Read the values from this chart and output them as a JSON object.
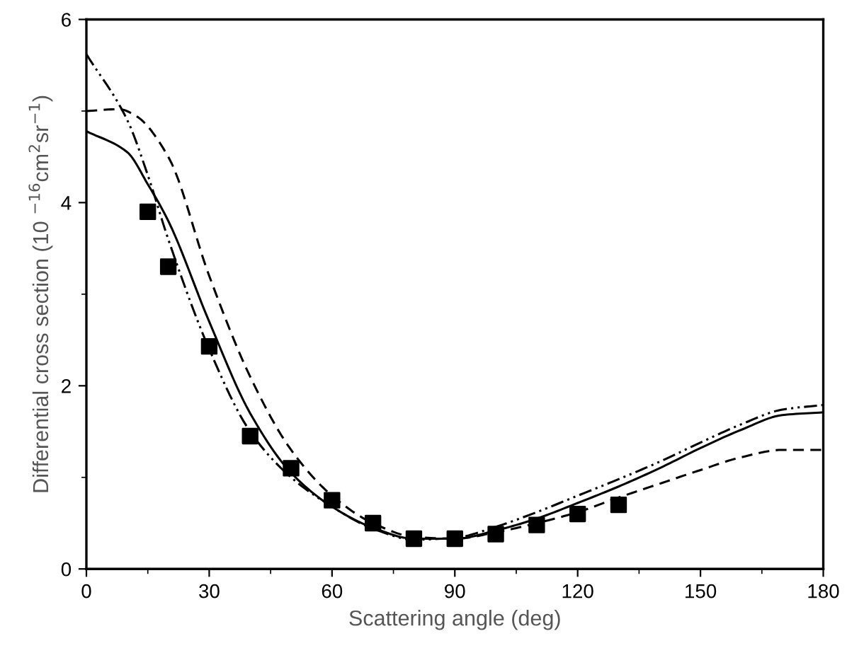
{
  "chart_data": {
    "type": "line",
    "xlabel": "Scattering angle (deg)",
    "ylabel": "Differential cross section (10 $^{−16}$cm$^{2}$sr$^{−1}$)",
    "xlim": [
      0,
      180
    ],
    "ylim": [
      0,
      6
    ],
    "xticks": [
      0,
      30,
      60,
      90,
      120,
      150,
      180
    ],
    "yticks": [
      0,
      2,
      4,
      6
    ],
    "grid": false,
    "legend": false,
    "series": [
      {
        "color": "#000000",
        "line_style": "solid",
        "marker": "none",
        "x": [
          0,
          10,
          15,
          20,
          30,
          40,
          50,
          60,
          70,
          80,
          90,
          100,
          110,
          120,
          130,
          140,
          150,
          160,
          170,
          180
        ],
        "values": [
          4.78,
          4.55,
          4.2,
          3.8,
          2.7,
          1.7,
          1.05,
          0.68,
          0.45,
          0.33,
          0.33,
          0.42,
          0.55,
          0.72,
          0.9,
          1.1,
          1.32,
          1.52,
          1.68,
          1.71
        ]
      },
      {
        "color": "#000000",
        "line_style": "dashed",
        "marker": "none",
        "x": [
          0,
          8,
          12,
          20,
          30,
          40,
          50,
          60,
          70,
          80,
          90,
          100,
          110,
          120,
          130,
          140,
          150,
          160,
          170,
          180
        ],
        "values": [
          5.0,
          5.02,
          4.95,
          4.5,
          3.2,
          2.1,
          1.3,
          0.8,
          0.5,
          0.35,
          0.33,
          0.4,
          0.5,
          0.62,
          0.78,
          0.93,
          1.08,
          1.22,
          1.3,
          1.3
        ]
      },
      {
        "color": "#000000",
        "line_style": "dashdot",
        "marker": "none",
        "x": [
          0,
          10,
          15,
          20,
          30,
          40,
          50,
          60,
          70,
          80,
          90,
          100,
          110,
          120,
          130,
          140,
          150,
          160,
          170,
          180
        ],
        "values": [
          5.62,
          4.9,
          4.3,
          3.6,
          2.4,
          1.5,
          1.0,
          0.68,
          0.44,
          0.32,
          0.34,
          0.46,
          0.62,
          0.8,
          0.98,
          1.17,
          1.38,
          1.58,
          1.74,
          1.79
        ]
      },
      {
        "type": "scatter",
        "color": "#000000",
        "marker": "square",
        "x": [
          15,
          20,
          30,
          40,
          50,
          60,
          70,
          80,
          90,
          100,
          110,
          120,
          130
        ],
        "values": [
          3.9,
          3.3,
          2.43,
          1.45,
          1.1,
          0.75,
          0.5,
          0.33,
          0.33,
          0.38,
          0.48,
          0.6,
          0.7
        ]
      }
    ]
  }
}
